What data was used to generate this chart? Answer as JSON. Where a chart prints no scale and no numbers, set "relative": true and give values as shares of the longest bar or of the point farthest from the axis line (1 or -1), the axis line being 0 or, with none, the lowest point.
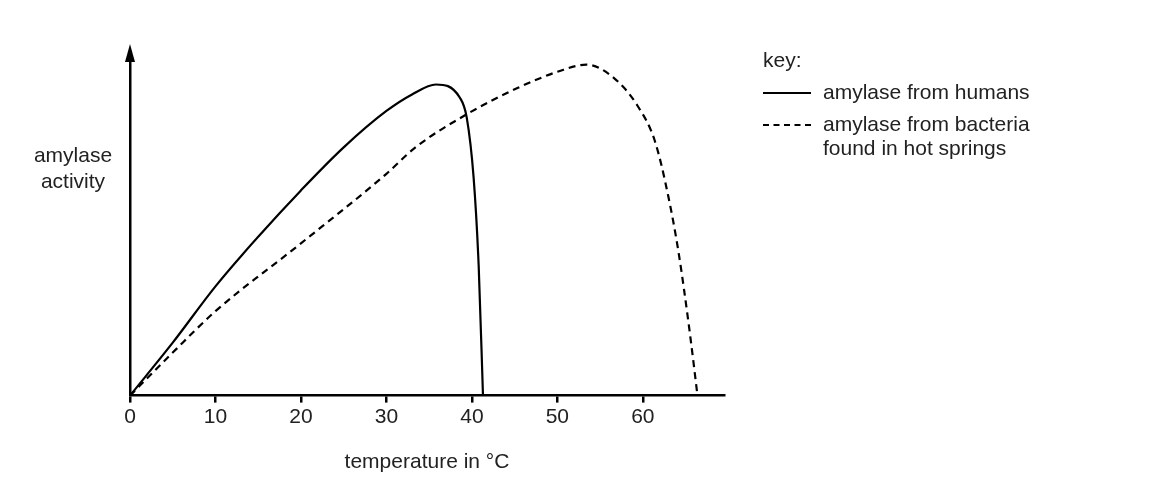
{
  "chart_data": {
    "type": "line",
    "relative": true,
    "xlabel": "temperature in °C",
    "ylabel": "amylase activity",
    "legend_title": "key:",
    "legend": "top right",
    "grid": false,
    "marker": "none",
    "xlim": [
      0,
      69.5
    ],
    "xticks": [
      0,
      10,
      20,
      30,
      40,
      50,
      60
    ],
    "series": [
      {
        "name": "amylase from humans",
        "color": "#000000",
        "line_style": "solid",
        "x": [
          0,
          5,
          10,
          15,
          20,
          25,
          30,
          33,
          35.8,
          38.6,
          39.4,
          40.2,
          40.8,
          41.3
        ],
        "values": [
          0,
          0.16,
          0.33,
          0.48,
          0.62,
          0.75,
          0.86,
          0.91,
          0.94,
          0.9,
          0.84,
          0.66,
          0.39,
          0
        ]
      },
      {
        "name": "amylase from bacteria found in hot springs",
        "color": "#000000",
        "line_style": "dashed",
        "x": [
          0,
          5,
          10,
          20,
          30,
          33.4,
          39.4,
          45.4,
          50.2,
          53.4,
          56.6,
          59.4,
          61.4,
          63,
          64.2,
          65.4,
          66.4
        ],
        "values": [
          0,
          0.13,
          0.255,
          0.46,
          0.67,
          0.75,
          0.85,
          0.93,
          0.98,
          1,
          0.96,
          0.875,
          0.77,
          0.6,
          0.43,
          0.21,
          0
        ]
      }
    ]
  }
}
